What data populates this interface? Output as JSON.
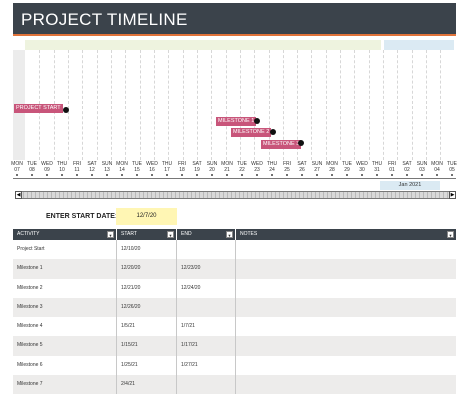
{
  "title": "PROJECT TIMELINE",
  "milestones": [
    {
      "label": "PROJECT START"
    },
    {
      "label": "MILESTONE 1"
    },
    {
      "label": "MILESTONE 2"
    },
    {
      "label": "MILESTONE 3"
    }
  ],
  "axis": {
    "days": [
      "MON",
      "TUE",
      "WED",
      "THU",
      "FRI",
      "SAT",
      "SUN",
      "MON",
      "TUE",
      "WED",
      "THU",
      "FRI",
      "SAT",
      "SUN",
      "MON",
      "TUE",
      "WED",
      "THU",
      "FRI",
      "SAT",
      "SUN",
      "MON",
      "TUE",
      "WED",
      "THU",
      "FRI",
      "SAT",
      "SUN",
      "MON",
      "TUE"
    ],
    "dates": [
      "07",
      "08",
      "09",
      "10",
      "11",
      "12",
      "13",
      "14",
      "15",
      "16",
      "17",
      "18",
      "19",
      "20",
      "21",
      "22",
      "23",
      "24",
      "25",
      "26",
      "27",
      "28",
      "29",
      "30",
      "31",
      "01",
      "02",
      "03",
      "04",
      "05"
    ],
    "month_label": "Jan 2021"
  },
  "start_date": {
    "label": "ENTER START DATE:",
    "value": "12/7/20"
  },
  "table": {
    "headers": [
      "ACTIVITY",
      "START",
      "END",
      "NOTES"
    ],
    "rows": [
      {
        "activity": "Project Start",
        "start": "12/10/20",
        "end": "",
        "notes": ""
      },
      {
        "activity": "Milestone 1",
        "start": "12/20/20",
        "end": "12/23/20",
        "notes": ""
      },
      {
        "activity": "Milestone 2",
        "start": "12/21/20",
        "end": "12/24/20",
        "notes": ""
      },
      {
        "activity": "Milestone 3",
        "start": "12/26/20",
        "end": "",
        "notes": ""
      },
      {
        "activity": "Milestone 4",
        "start": "1/5/21",
        "end": "1/7/21",
        "notes": ""
      },
      {
        "activity": "Milestone 5",
        "start": "1/15/21",
        "end": "1/17/21",
        "notes": ""
      },
      {
        "activity": "Milestone 6",
        "start": "1/25/21",
        "end": "1/27/21",
        "notes": ""
      },
      {
        "activity": "Milestone 7",
        "start": "2/4/21",
        "end": "",
        "notes": ""
      }
    ]
  },
  "colors": {
    "header": "#3b434b",
    "accent": "#e0733a",
    "milestone": "#c8557a",
    "start_highlight": "#fff6b4"
  }
}
